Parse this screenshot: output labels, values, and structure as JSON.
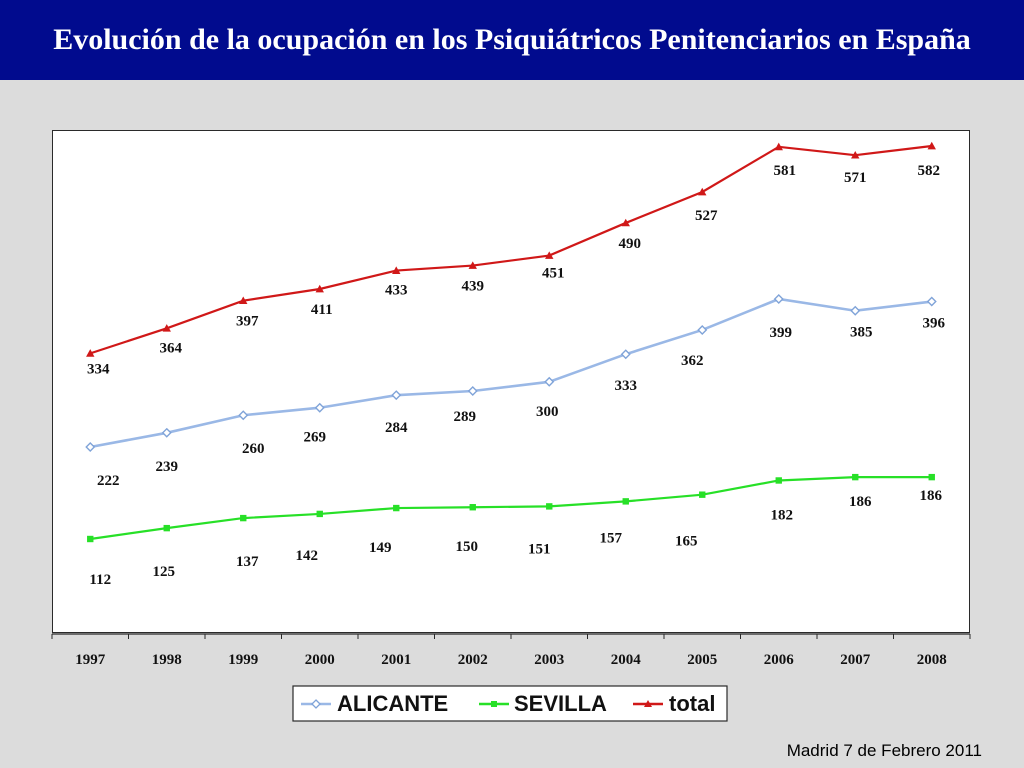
{
  "title": "Evolución de la ocupación en los Psiquiátricos Penitenciarios en España",
  "footer": "Madrid 7 de Febrero 2011",
  "colors": {
    "title_bar": "#010b8e",
    "ALICANTE": "#9ab8e6",
    "SEVILLA": "#27e027",
    "total": "#d01818"
  },
  "chart_data": {
    "type": "line",
    "title": "",
    "xlabel": "",
    "ylabel": "",
    "ylim": [
      50,
      600
    ],
    "grid": false,
    "legend_position": "bottom",
    "categories": [
      "1997",
      "1998",
      "1999",
      "2000",
      "2001",
      "2002",
      "2003",
      "2004",
      "2005",
      "2006",
      "2007",
      "2008"
    ],
    "series": [
      {
        "name": "ALICANTE",
        "marker": "diamond",
        "values": [
          222,
          239,
          260,
          269,
          284,
          289,
          300,
          333,
          362,
          399,
          385,
          396
        ]
      },
      {
        "name": "SEVILLA",
        "marker": "square",
        "values": [
          112,
          125,
          137,
          142,
          149,
          150,
          151,
          157,
          165,
          182,
          186,
          186
        ]
      },
      {
        "name": "total",
        "marker": "triangle",
        "values": [
          334,
          364,
          397,
          411,
          433,
          439,
          451,
          490,
          527,
          581,
          571,
          582
        ]
      }
    ]
  }
}
